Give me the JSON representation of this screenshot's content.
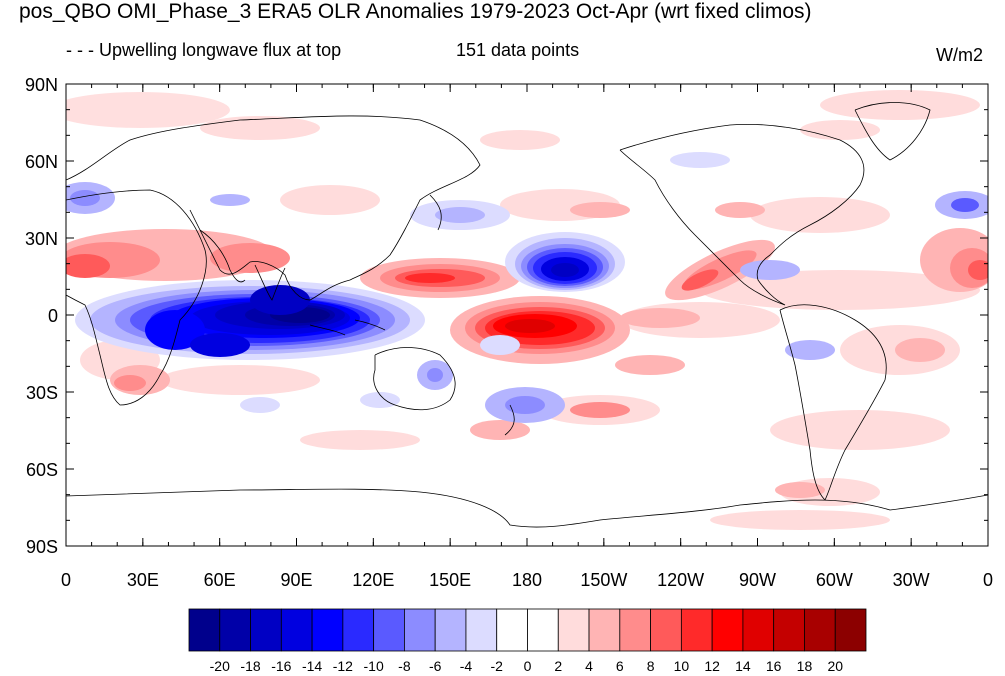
{
  "title": "pos_QBO OMI_Phase_3 ERA5 OLR Anomalies 1979-2023 Oct-Apr (wrt fixed climos)",
  "left_string": "- - - Upwelling longwave flux at top",
  "center_string": "151 data points",
  "units": "W/m2",
  "lat_ticks": [
    "90N",
    "60N",
    "30N",
    "0",
    "30S",
    "60S",
    "90S"
  ],
  "lon_ticks": [
    "0",
    "30E",
    "60E",
    "90E",
    "120E",
    "150E",
    "180",
    "150W",
    "120W",
    "90W",
    "60W",
    "30W",
    "0"
  ],
  "colorbar": {
    "labels": [
      "-20",
      "-18",
      "-16",
      "-14",
      "-12",
      "-10",
      "-8",
      "-6",
      "-4",
      "-2",
      "0",
      "2",
      "4",
      "6",
      "8",
      "10",
      "12",
      "14",
      "16",
      "18",
      "20"
    ],
    "colors": [
      "#00008c",
      "#0000a8",
      "#0000c4",
      "#0000e0",
      "#0000ff",
      "#2a2aff",
      "#5a5aff",
      "#8c8cff",
      "#b4b4ff",
      "#dcdcff",
      "#ffffff",
      "#ffffff",
      "#ffdcdc",
      "#ffb4b4",
      "#ff8c8c",
      "#ff5a5a",
      "#ff2a2a",
      "#ff0000",
      "#e00000",
      "#c40000",
      "#a80000",
      "#8c0000"
    ]
  }
}
